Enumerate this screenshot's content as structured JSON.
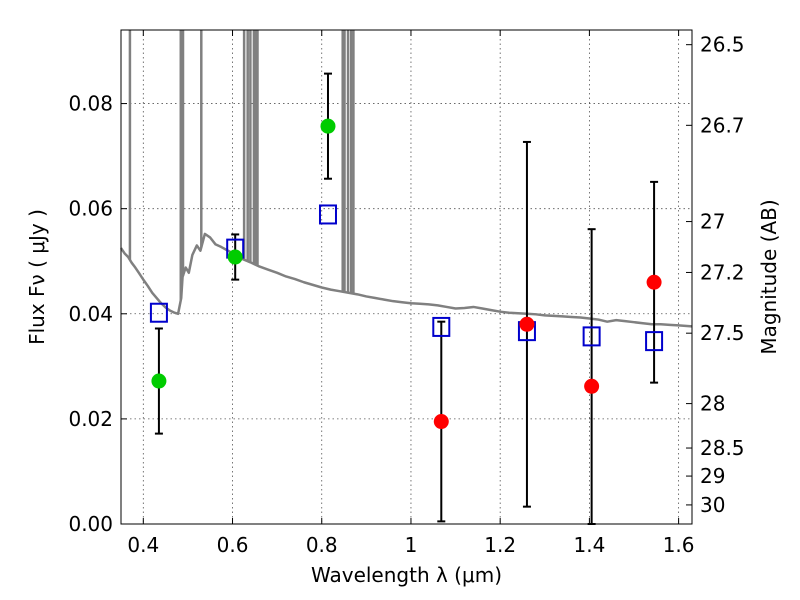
{
  "chart_data": {
    "type": "scatter",
    "xlabel": "Wavelength  λ (μm)",
    "ylabel": "Flux  Fν  ( μJy )",
    "ylabel_right": "Magnitude (AB)",
    "xlim": [
      0.35,
      1.63
    ],
    "ylim": [
      0.0,
      0.094
    ],
    "grid": true,
    "x_ticks": [
      0.4,
      0.6,
      0.8,
      1.0,
      1.2,
      1.4,
      1.6
    ],
    "x_tick_labels": [
      "0.4",
      "0.6",
      "0.8",
      "1",
      "1.2",
      "1.4",
      "1.6"
    ],
    "y_ticks": [
      0.0,
      0.02,
      0.04,
      0.06,
      0.08
    ],
    "y_tick_labels": [
      "0.00",
      "0.02",
      "0.04",
      "0.06",
      "0.08"
    ],
    "right_ticks": [
      {
        "label": "26.5",
        "mag": 26.5
      },
      {
        "label": "26.7",
        "mag": 26.7
      },
      {
        "label": "27",
        "mag": 27.0
      },
      {
        "label": "27.2",
        "mag": 27.2
      },
      {
        "label": "27.5",
        "mag": 27.5
      },
      {
        "label": "28",
        "mag": 28.0
      },
      {
        "label": "28.5",
        "mag": 28.5
      },
      {
        "label": "29",
        "mag": 29.0
      },
      {
        "label": "30",
        "mag": 30.0
      }
    ],
    "observed_color": "#00cc00",
    "observed_points": [
      {
        "x": 0.435,
        "y": 0.0272,
        "ylo": 0.0172,
        "yhi": 0.0372
      },
      {
        "x": 0.606,
        "y": 0.0508,
        "ylo": 0.0465,
        "yhi": 0.0551
      },
      {
        "x": 0.814,
        "y": 0.0757,
        "ylo": 0.0657,
        "yhi": 0.0857
      }
    ],
    "limit_color": "#ff0000",
    "limit_points": [
      {
        "x": 1.068,
        "y": 0.0195,
        "ylo": 0.0005,
        "yhi": 0.0385
      },
      {
        "x": 1.26,
        "y": 0.038,
        "ylo": 0.0033,
        "yhi": 0.0727
      },
      {
        "x": 1.405,
        "y": 0.0262,
        "ylo": 0.0,
        "yhi": 0.0561
      },
      {
        "x": 1.545,
        "y": 0.046,
        "ylo": 0.0269,
        "yhi": 0.0651
      }
    ],
    "model_color": "#0000cc",
    "model_points": [
      {
        "x": 0.435,
        "y": 0.0402
      },
      {
        "x": 0.606,
        "y": 0.0524
      },
      {
        "x": 0.814,
        "y": 0.0589
      },
      {
        "x": 1.068,
        "y": 0.0375
      },
      {
        "x": 1.26,
        "y": 0.0367
      },
      {
        "x": 1.405,
        "y": 0.0357
      },
      {
        "x": 1.545,
        "y": 0.0348
      }
    ],
    "sed_color": "#808080",
    "sed_points": [
      [
        0.35,
        0.0525
      ],
      [
        0.358,
        0.0515
      ],
      [
        0.366,
        0.0508
      ],
      [
        0.374,
        0.0497
      ],
      [
        0.382,
        0.0488
      ],
      [
        0.39,
        0.0478
      ],
      [
        0.4,
        0.0465
      ],
      [
        0.41,
        0.0453
      ],
      [
        0.42,
        0.044
      ],
      [
        0.43,
        0.043
      ],
      [
        0.44,
        0.042
      ],
      [
        0.45,
        0.0412
      ],
      [
        0.46,
        0.0406
      ],
      [
        0.47,
        0.0402
      ],
      [
        0.478,
        0.04
      ],
      [
        0.485,
        0.043
      ],
      [
        0.488,
        0.047
      ],
      [
        0.495,
        0.0488
      ],
      [
        0.502,
        0.0478
      ],
      [
        0.51,
        0.0512
      ],
      [
        0.52,
        0.053
      ],
      [
        0.528,
        0.052
      ],
      [
        0.538,
        0.0552
      ],
      [
        0.55,
        0.0545
      ],
      [
        0.562,
        0.0532
      ],
      [
        0.575,
        0.0527
      ],
      [
        0.59,
        0.052
      ],
      [
        0.605,
        0.0513
      ],
      [
        0.62,
        0.0505
      ],
      [
        0.64,
        0.0498
      ],
      [
        0.66,
        0.049
      ],
      [
        0.68,
        0.0484
      ],
      [
        0.7,
        0.0478
      ],
      [
        0.72,
        0.0471
      ],
      [
        0.74,
        0.0466
      ],
      [
        0.76,
        0.046
      ],
      [
        0.78,
        0.0455
      ],
      [
        0.8,
        0.045
      ],
      [
        0.82,
        0.0446
      ],
      [
        0.84,
        0.0443
      ],
      [
        0.86,
        0.044
      ],
      [
        0.88,
        0.0437
      ],
      [
        0.9,
        0.0433
      ],
      [
        0.92,
        0.043
      ],
      [
        0.94,
        0.0427
      ],
      [
        0.96,
        0.0424
      ],
      [
        0.98,
        0.0422
      ],
      [
        1.0,
        0.042
      ],
      [
        1.02,
        0.0419
      ],
      [
        1.04,
        0.0418
      ],
      [
        1.06,
        0.0416
      ],
      [
        1.08,
        0.0413
      ],
      [
        1.1,
        0.041
      ],
      [
        1.12,
        0.0411
      ],
      [
        1.14,
        0.0413
      ],
      [
        1.16,
        0.041
      ],
      [
        1.18,
        0.0407
      ],
      [
        1.2,
        0.0404
      ],
      [
        1.22,
        0.0402
      ],
      [
        1.24,
        0.0401
      ],
      [
        1.26,
        0.04
      ],
      [
        1.28,
        0.0399
      ],
      [
        1.3,
        0.0397
      ],
      [
        1.32,
        0.0396
      ],
      [
        1.34,
        0.0395
      ],
      [
        1.36,
        0.0394
      ],
      [
        1.38,
        0.0393
      ],
      [
        1.4,
        0.0391
      ],
      [
        1.42,
        0.0389
      ],
      [
        1.44,
        0.0385
      ],
      [
        1.46,
        0.0388
      ],
      [
        1.48,
        0.0386
      ],
      [
        1.5,
        0.0384
      ],
      [
        1.52,
        0.0382
      ],
      [
        1.54,
        0.038
      ],
      [
        1.56,
        0.038
      ],
      [
        1.58,
        0.0379
      ],
      [
        1.6,
        0.0378
      ],
      [
        1.63,
        0.0376
      ]
    ],
    "sed_spikes": [
      0.37,
      0.484,
      0.489,
      0.53,
      0.626,
      0.634,
      0.64,
      0.648,
      0.652,
      0.656,
      0.847,
      0.851,
      0.859,
      0.866,
      0.871
    ]
  }
}
